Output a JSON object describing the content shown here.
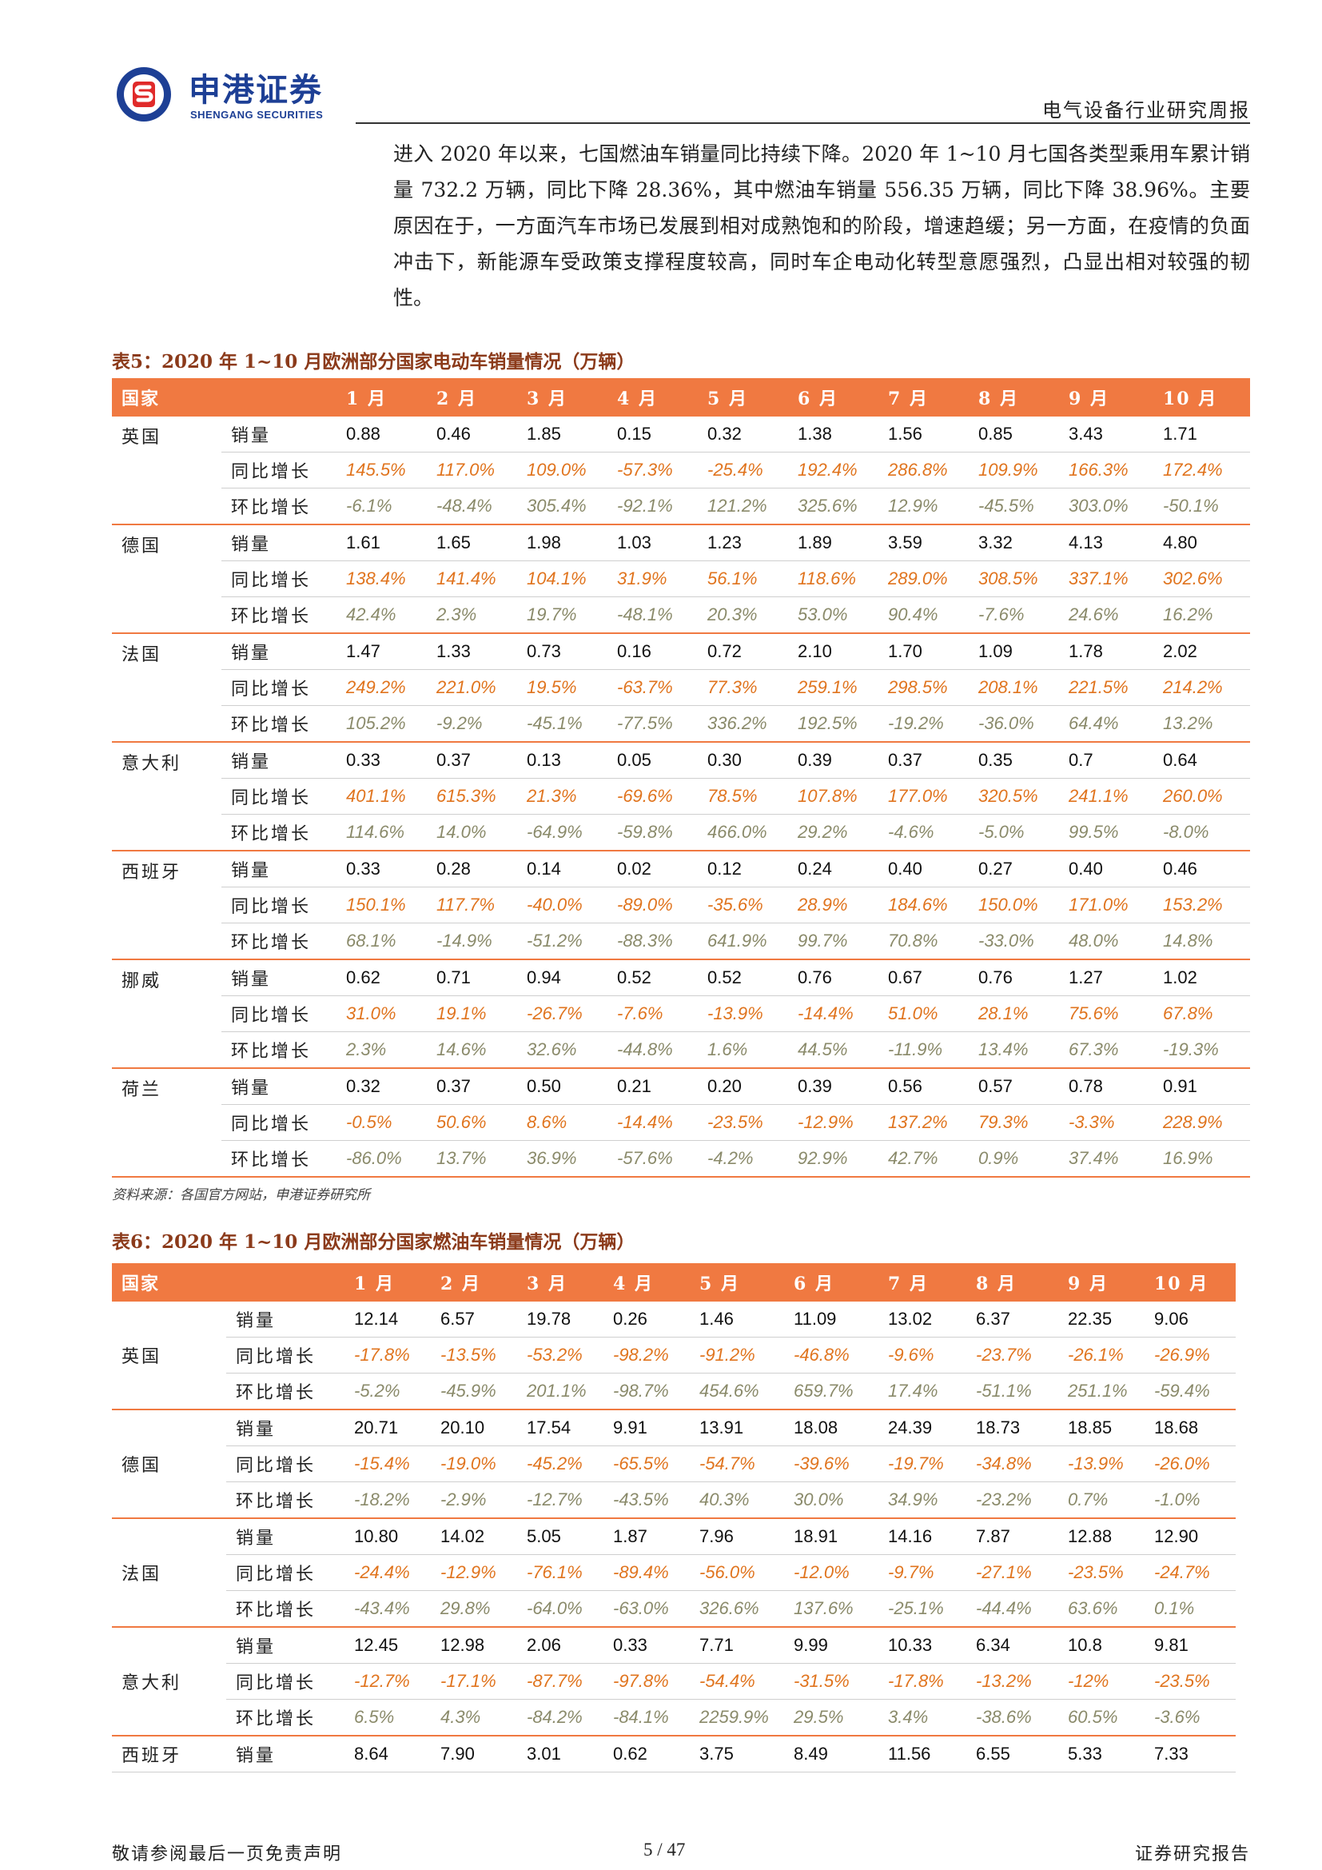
{
  "header": {
    "logo_cn": "申港证券",
    "logo_en": "SHENGANG SECURITIES",
    "report_type": "电气设备行业研究周报",
    "colors": {
      "brand_blue": "#1d3f95",
      "brand_red": "#e02a2a",
      "table_header": "#f07941"
    }
  },
  "intro": "进入 2020 年以来，七国燃油车销量同比持续下降。2020 年 1~10 月七国各类型乘用车累计销量 732.2 万辆，同比下降 28.36%，其中燃油车销量 556.35 万辆，同比下降 38.96%。主要原因在于，一方面汽车市场已发展到相对成熟饱和的阶段，增速趋缓；另一方面，在疫情的负面冲击下，新能源车受政策支撑程度较高，同时车企电动化转型意愿强烈，凸显出相对较强的韧性。",
  "table5": {
    "title": "表5：2020 年 1~10 月欧洲部分国家电动车销量情况（万辆）",
    "headers": [
      "国家",
      "",
      "1 月",
      "2 月",
      "3 月",
      "4 月",
      "5 月",
      "6 月",
      "7 月",
      "8 月",
      "9 月",
      "10 月"
    ],
    "rows": [
      {
        "country": "英国",
        "metric": "销量",
        "kind": "sales",
        "values": [
          "0.88",
          "0.46",
          "1.85",
          "0.15",
          "0.32",
          "1.38",
          "1.56",
          "0.85",
          "3.43",
          "1.71"
        ]
      },
      {
        "country": "",
        "metric": "同比增长",
        "kind": "yoy",
        "values": [
          "145.5%",
          "117.0%",
          "109.0%",
          "-57.3%",
          "-25.4%",
          "192.4%",
          "286.8%",
          "109.9%",
          "166.3%",
          "172.4%"
        ]
      },
      {
        "country": "",
        "metric": "环比增长",
        "kind": "mom",
        "values": [
          "-6.1%",
          "-48.4%",
          "305.4%",
          "-92.1%",
          "121.2%",
          "325.6%",
          "12.9%",
          "-45.5%",
          "303.0%",
          "-50.1%"
        ]
      },
      {
        "country": "德国",
        "metric": "销量",
        "kind": "sales",
        "values": [
          "1.61",
          "1.65",
          "1.98",
          "1.03",
          "1.23",
          "1.89",
          "3.59",
          "3.32",
          "4.13",
          "4.80"
        ]
      },
      {
        "country": "",
        "metric": "同比增长",
        "kind": "yoy",
        "values": [
          "138.4%",
          "141.4%",
          "104.1%",
          "31.9%",
          "56.1%",
          "118.6%",
          "289.0%",
          "308.5%",
          "337.1%",
          "302.6%"
        ]
      },
      {
        "country": "",
        "metric": "环比增长",
        "kind": "mom",
        "values": [
          "42.4%",
          "2.3%",
          "19.7%",
          "-48.1%",
          "20.3%",
          "53.0%",
          "90.4%",
          "-7.6%",
          "24.6%",
          "16.2%"
        ]
      },
      {
        "country": "法国",
        "metric": "销量",
        "kind": "sales",
        "values": [
          "1.47",
          "1.33",
          "0.73",
          "0.16",
          "0.72",
          "2.10",
          "1.70",
          "1.09",
          "1.78",
          "2.02"
        ]
      },
      {
        "country": "",
        "metric": "同比增长",
        "kind": "yoy",
        "values": [
          "249.2%",
          "221.0%",
          "19.5%",
          "-63.7%",
          "77.3%",
          "259.1%",
          "298.5%",
          "208.1%",
          "221.5%",
          "214.2%"
        ]
      },
      {
        "country": "",
        "metric": "环比增长",
        "kind": "mom",
        "values": [
          "105.2%",
          "-9.2%",
          "-45.1%",
          "-77.5%",
          "336.2%",
          "192.5%",
          "-19.2%",
          "-36.0%",
          "64.4%",
          "13.2%"
        ]
      },
      {
        "country": "意大利",
        "metric": "销量",
        "kind": "sales",
        "values": [
          "0.33",
          "0.37",
          "0.13",
          "0.05",
          "0.30",
          "0.39",
          "0.37",
          "0.35",
          "0.7",
          "0.64"
        ]
      },
      {
        "country": "",
        "metric": "同比增长",
        "kind": "yoy",
        "values": [
          "401.1%",
          "615.3%",
          "21.3%",
          "-69.6%",
          "78.5%",
          "107.8%",
          "177.0%",
          "320.5%",
          "241.1%",
          "260.0%"
        ]
      },
      {
        "country": "",
        "metric": "环比增长",
        "kind": "mom",
        "values": [
          "114.6%",
          "14.0%",
          "-64.9%",
          "-59.8%",
          "466.0%",
          "29.2%",
          "-4.6%",
          "-5.0%",
          "99.5%",
          "-8.0%"
        ]
      },
      {
        "country": "西班牙",
        "metric": "销量",
        "kind": "sales",
        "values": [
          "0.33",
          "0.28",
          "0.14",
          "0.02",
          "0.12",
          "0.24",
          "0.40",
          "0.27",
          "0.40",
          "0.46"
        ]
      },
      {
        "country": "",
        "metric": "同比增长",
        "kind": "yoy",
        "values": [
          "150.1%",
          "117.7%",
          "-40.0%",
          "-89.0%",
          "-35.6%",
          "28.9%",
          "184.6%",
          "150.0%",
          "171.0%",
          "153.2%"
        ]
      },
      {
        "country": "",
        "metric": "环比增长",
        "kind": "mom",
        "values": [
          "68.1%",
          "-14.9%",
          "-51.2%",
          "-88.3%",
          "641.9%",
          "99.7%",
          "70.8%",
          "-33.0%",
          "48.0%",
          "14.8%"
        ]
      },
      {
        "country": "挪威",
        "metric": "销量",
        "kind": "sales",
        "values": [
          "0.62",
          "0.71",
          "0.94",
          "0.52",
          "0.52",
          "0.76",
          "0.67",
          "0.76",
          "1.27",
          "1.02"
        ]
      },
      {
        "country": "",
        "metric": "同比增长",
        "kind": "yoy",
        "values": [
          "31.0%",
          "19.1%",
          "-26.7%",
          "-7.6%",
          "-13.9%",
          "-14.4%",
          "51.0%",
          "28.1%",
          "75.6%",
          "67.8%"
        ]
      },
      {
        "country": "",
        "metric": "环比增长",
        "kind": "mom",
        "values": [
          "2.3%",
          "14.6%",
          "32.6%",
          "-44.8%",
          "1.6%",
          "44.5%",
          "-11.9%",
          "13.4%",
          "67.3%",
          "-19.3%"
        ]
      },
      {
        "country": "荷兰",
        "metric": "销量",
        "kind": "sales",
        "values": [
          "0.32",
          "0.37",
          "0.50",
          "0.21",
          "0.20",
          "0.39",
          "0.56",
          "0.57",
          "0.78",
          "0.91"
        ]
      },
      {
        "country": "",
        "metric": "同比增长",
        "kind": "yoy",
        "values": [
          "-0.5%",
          "50.6%",
          "8.6%",
          "-14.4%",
          "-23.5%",
          "-12.9%",
          "137.2%",
          "79.3%",
          "-3.3%",
          "228.9%"
        ]
      },
      {
        "country": "",
        "metric": "环比增长",
        "kind": "mom",
        "values": [
          "-86.0%",
          "13.7%",
          "36.9%",
          "-57.6%",
          "-4.2%",
          "92.9%",
          "42.7%",
          "0.9%",
          "37.4%",
          "16.9%"
        ]
      }
    ],
    "source": "资料来源：各国官方网站，申港证券研究所"
  },
  "table6": {
    "title": "表6：2020 年 1~10 月欧洲部分国家燃油车销量情况（万辆）",
    "headers": [
      "国家",
      "",
      "1 月",
      "2 月",
      "3 月",
      "4 月",
      "5 月",
      "6 月",
      "7 月",
      "8 月",
      "9 月",
      "10 月"
    ],
    "rows": [
      {
        "country": "英国",
        "metric": "销量",
        "kind": "sales",
        "values": [
          "12.14",
          "6.57",
          "19.78",
          "0.26",
          "1.46",
          "11.09",
          "13.02",
          "6.37",
          "22.35",
          "9.06"
        ]
      },
      {
        "country": "",
        "metric": "同比增长",
        "kind": "yoy",
        "values": [
          "-17.8%",
          "-13.5%",
          "-53.2%",
          "-98.2%",
          "-91.2%",
          "-46.8%",
          "-9.6%",
          "-23.7%",
          "-26.1%",
          "-26.9%"
        ]
      },
      {
        "country": "",
        "metric": "环比增长",
        "kind": "mom",
        "values": [
          "-5.2%",
          "-45.9%",
          "201.1%",
          "-98.7%",
          "454.6%",
          "659.7%",
          "17.4%",
          "-51.1%",
          "251.1%",
          "-59.4%"
        ]
      },
      {
        "country": "德国",
        "metric": "销量",
        "kind": "sales",
        "values": [
          "20.71",
          "20.10",
          "17.54",
          "9.91",
          "13.91",
          "18.08",
          "24.39",
          "18.73",
          "18.85",
          "18.68"
        ]
      },
      {
        "country": "",
        "metric": "同比增长",
        "kind": "yoy",
        "values": [
          "-15.4%",
          "-19.0%",
          "-45.2%",
          "-65.5%",
          "-54.7%",
          "-39.6%",
          "-19.7%",
          "-34.8%",
          "-13.9%",
          "-26.0%"
        ]
      },
      {
        "country": "",
        "metric": "环比增长",
        "kind": "mom",
        "values": [
          "-18.2%",
          "-2.9%",
          "-12.7%",
          "-43.5%",
          "40.3%",
          "30.0%",
          "34.9%",
          "-23.2%",
          "0.7%",
          "-1.0%"
        ]
      },
      {
        "country": "法国",
        "metric": "销量",
        "kind": "sales",
        "values": [
          "10.80",
          "14.02",
          "5.05",
          "1.87",
          "7.96",
          "18.91",
          "14.16",
          "7.87",
          "12.88",
          "12.90"
        ]
      },
      {
        "country": "",
        "metric": "同比增长",
        "kind": "yoy",
        "values": [
          "-24.4%",
          "-12.9%",
          "-76.1%",
          "-89.4%",
          "-56.0%",
          "-12.0%",
          "-9.7%",
          "-27.1%",
          "-23.5%",
          "-24.7%"
        ]
      },
      {
        "country": "",
        "metric": "环比增长",
        "kind": "mom",
        "values": [
          "-43.4%",
          "29.8%",
          "-64.0%",
          "-63.0%",
          "326.6%",
          "137.6%",
          "-25.1%",
          "-44.4%",
          "63.6%",
          "0.1%"
        ]
      },
      {
        "country": "意大利",
        "metric": "销量",
        "kind": "sales",
        "values": [
          "12.45",
          "12.98",
          "2.06",
          "0.33",
          "7.71",
          "9.99",
          "10.33",
          "6.34",
          "10.8",
          "9.81"
        ]
      },
      {
        "country": "",
        "metric": "同比增长",
        "kind": "yoy",
        "values": [
          "-12.7%",
          "-17.1%",
          "-87.7%",
          "-97.8%",
          "-54.4%",
          "-31.5%",
          "-17.8%",
          "-13.2%",
          "-12%",
          "-23.5%"
        ]
      },
      {
        "country": "",
        "metric": "环比增长",
        "kind": "mom",
        "values": [
          "6.5%",
          "4.3%",
          "-84.2%",
          "-84.1%",
          "2259.9%",
          "29.5%",
          "3.4%",
          "-38.6%",
          "60.5%",
          "-3.6%"
        ]
      },
      {
        "country": "西班牙",
        "metric": "销量",
        "kind": "sales",
        "values": [
          "8.64",
          "7.90",
          "3.01",
          "0.62",
          "3.75",
          "8.49",
          "11.56",
          "6.55",
          "5.33",
          "7.33"
        ]
      }
    ]
  },
  "footer": {
    "disclaimer": "敬请参阅最后一页免责声明",
    "page": "5 / 47",
    "report_label": "证券研究报告"
  }
}
